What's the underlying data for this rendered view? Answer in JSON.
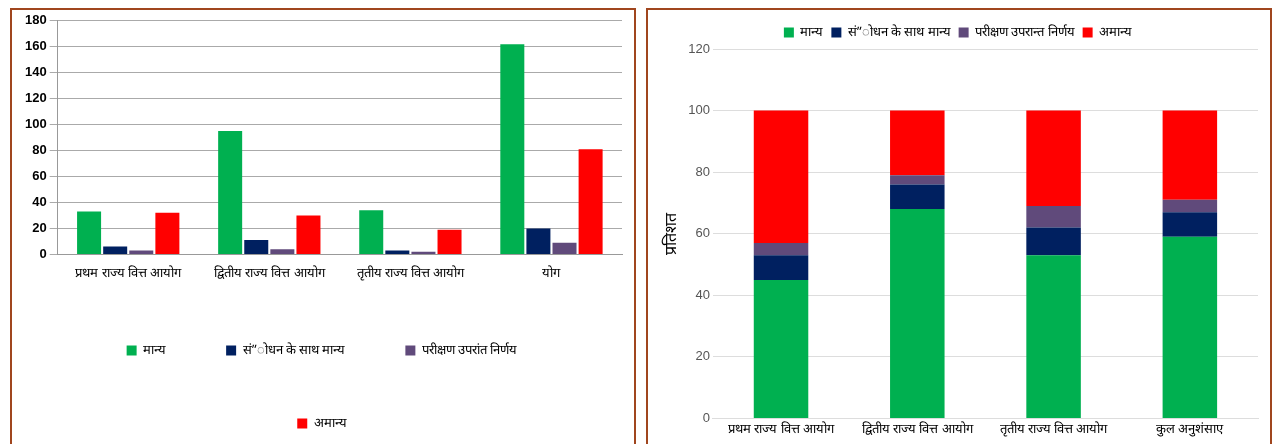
{
  "chart_data": [
    {
      "type": "bar",
      "categories": [
        "प्रथम राज्य वित्त आयोग",
        "द्वितीय राज्य वित्त आयोग",
        "तृतीय राज्य वित्त आयोग",
        "योग"
      ],
      "series": [
        {
          "name": "मान्य",
          "color": "#00b050",
          "values": [
            33,
            95,
            34,
            162
          ]
        },
        {
          "name": "सं”ोधन के साथ मान्य",
          "color": "#002060",
          "values": [
            6,
            11,
            3,
            20
          ]
        },
        {
          "name": "परीक्षण उपरांत निर्णय",
          "color": "#604a7b",
          "values": [
            3,
            4,
            2,
            9
          ]
        },
        {
          "name": "अमान्य",
          "color": "#ff0000",
          "values": [
            32,
            30,
            19,
            81
          ]
        }
      ],
      "ylim": [
        0,
        180
      ],
      "yticks": [
        0,
        20,
        40,
        60,
        80,
        100,
        120,
        140,
        160,
        180
      ],
      "grid": "y",
      "legend": "bottom"
    },
    {
      "type": "bar",
      "stacked": true,
      "ylabel": "प्रतिशत",
      "categories": [
        "प्रथम राज्य वित्त आयोग",
        "द्वितीय राज्य वित्त आयोग",
        "तृतीय राज्य वित्त आयोग",
        "कुल अनुशंसाए"
      ],
      "series": [
        {
          "name": "मान्य",
          "color": "#00b050",
          "values": [
            45,
            68,
            53,
            59
          ]
        },
        {
          "name": "सं”ोधन के साथ मान्य",
          "color": "#002060",
          "values": [
            8,
            8,
            9,
            8
          ]
        },
        {
          "name": "परीक्षण उपरान्त निर्णय",
          "color": "#604a7b",
          "values": [
            4,
            3,
            7,
            4
          ]
        },
        {
          "name": "अमान्य",
          "color": "#ff0000",
          "values": [
            43,
            21,
            31,
            29
          ]
        }
      ],
      "ylim": [
        0,
        120
      ],
      "yticks": [
        0,
        20,
        40,
        60,
        80,
        100,
        120
      ],
      "grid": "y",
      "legend": "top"
    }
  ]
}
